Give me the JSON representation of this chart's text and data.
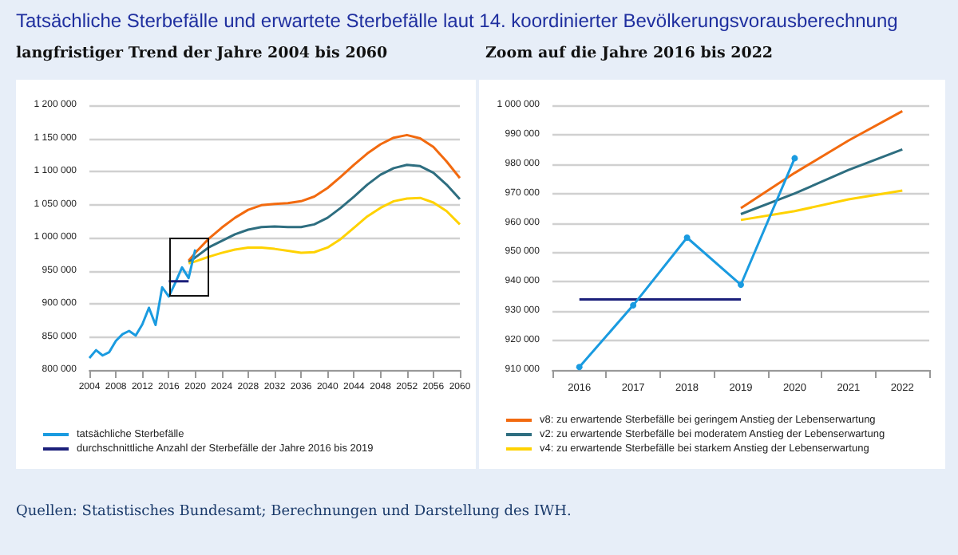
{
  "chart_data": [
    {
      "type": "line",
      "title": "Tatsächliche Sterbefälle und erwartete Sterbefälle laut 14. koordinierter Bevölkerungsvorausberechnung",
      "subtitle": "langfristiger Trend der Jahre 2004 bis 2060",
      "annotations": [
        "Quellen: Statistisches Bundesamt; Berechnungen und Darstellung des IWH."
      ],
      "xlim": [
        2004,
        2060
      ],
      "xticks": [
        2004,
        2008,
        2012,
        2016,
        2020,
        2024,
        2028,
        2032,
        2036,
        2040,
        2044,
        2048,
        2052,
        2056,
        2060
      ],
      "ylim": [
        800000,
        1200000
      ],
      "yticks": [
        {
          "value": 800000,
          "label": "800 000"
        },
        {
          "value": 850000,
          "label": "850 000"
        },
        {
          "value": 900000,
          "label": "900 000"
        },
        {
          "value": 950000,
          "label": "950 000"
        },
        {
          "value": 1000000,
          "label": "1 000 000"
        },
        {
          "value": 1050000,
          "label": "1 050 000"
        },
        {
          "value": 1100000,
          "label": "1 100 000"
        },
        {
          "value": 1150000,
          "label": "1 150 000"
        },
        {
          "value": 1200000,
          "label": "1 200 000"
        }
      ],
      "grid": "y",
      "legend": "bottom",
      "series": [
        {
          "color": "#f26a0f",
          "x": [
            2019,
            2020,
            2022,
            2024,
            2026,
            2028,
            2030,
            2032,
            2034,
            2036,
            2038,
            2040,
            2042,
            2044,
            2046,
            2048,
            2050,
            2052,
            2054,
            2056,
            2058,
            2060
          ],
          "values": [
            965000,
            977000,
            998000,
            1015000,
            1030000,
            1042000,
            1049000,
            1051000,
            1052000,
            1055000,
            1062000,
            1075000,
            1092000,
            1110000,
            1127000,
            1141000,
            1151000,
            1155000,
            1150000,
            1137000,
            1115000,
            1090000
          ]
        },
        {
          "color": "#2e6e80",
          "x": [
            2019,
            2020,
            2022,
            2024,
            2026,
            2028,
            2030,
            2032,
            2034,
            2036,
            2038,
            2040,
            2042,
            2044,
            2046,
            2048,
            2050,
            2052,
            2054,
            2056,
            2058,
            2060
          ],
          "values": [
            963000,
            970000,
            985000,
            995000,
            1005000,
            1012000,
            1016000,
            1017000,
            1016000,
            1016000,
            1020000,
            1030000,
            1045000,
            1062000,
            1080000,
            1095000,
            1105000,
            1110000,
            1108000,
            1098000,
            1080000,
            1058000
          ]
        },
        {
          "color": "#ffd200",
          "x": [
            2019,
            2020,
            2022,
            2024,
            2026,
            2028,
            2030,
            2032,
            2034,
            2036,
            2038,
            2040,
            2042,
            2044,
            2046,
            2048,
            2050,
            2052,
            2054,
            2056,
            2058,
            2060
          ],
          "values": [
            961000,
            964000,
            971000,
            977000,
            982000,
            985000,
            985000,
            983000,
            980000,
            977000,
            978000,
            985000,
            998000,
            1015000,
            1032000,
            1045000,
            1055000,
            1059000,
            1060000,
            1053000,
            1040000,
            1020000
          ]
        },
        {
          "name": "tatsächliche Sterbefälle",
          "color": "#1a9be0",
          "x": [
            2004,
            2005,
            2006,
            2007,
            2008,
            2009,
            2010,
            2011,
            2012,
            2013,
            2014,
            2015,
            2016,
            2017,
            2018,
            2019,
            2020
          ],
          "values": [
            818000,
            830000,
            822000,
            827000,
            844000,
            854000,
            859000,
            852000,
            869000,
            894000,
            868000,
            925000,
            911000,
            932000,
            955000,
            939000,
            982000
          ]
        },
        {
          "name": "durchschnittliche Anzahl der Sterbefälle der Jahre 2016 bis 2019",
          "color": "#1b1f7a",
          "x": [
            2016,
            2019
          ],
          "values": [
            934000,
            934000
          ]
        }
      ]
    },
    {
      "type": "line",
      "subtitle": "Zoom auf die Jahre 2016 bis 2022",
      "categories": [
        "2016",
        "2017",
        "2018",
        "2019",
        "2020",
        "2021",
        "2022"
      ],
      "ylim": [
        910000,
        1000000
      ],
      "yticks": [
        {
          "value": 910000,
          "label": "910 000"
        },
        {
          "value": 920000,
          "label": "920 000"
        },
        {
          "value": 930000,
          "label": "930 000"
        },
        {
          "value": 940000,
          "label": "940 000"
        },
        {
          "value": 950000,
          "label": "950 000"
        },
        {
          "value": 960000,
          "label": "960 000"
        },
        {
          "value": 970000,
          "label": "970 000"
        },
        {
          "value": 980000,
          "label": "980 000"
        },
        {
          "value": 990000,
          "label": "990 000"
        },
        {
          "value": 1000000,
          "label": "1 000 000"
        }
      ],
      "grid": "y",
      "legend": "bottom",
      "series": [
        {
          "color": "#1b1f7a",
          "values": [
            934000,
            934000,
            934000,
            934000,
            null,
            null,
            null
          ]
        },
        {
          "name": "v8: zu erwartende Sterbefälle bei geringem Anstieg der Lebenserwartung",
          "color": "#f26a0f",
          "values": [
            null,
            null,
            null,
            965000,
            977000,
            988000,
            998000
          ]
        },
        {
          "name": "v2: zu erwartende Sterbefälle bei moderatem Anstieg der Lebenserwartung",
          "color": "#2e6e80",
          "values": [
            null,
            null,
            null,
            963000,
            970000,
            978000,
            985000
          ]
        },
        {
          "name": "v4: zu erwartende Sterbefälle bei starkem Anstieg der Lebenserwartung",
          "color": "#ffd200",
          "values": [
            null,
            null,
            null,
            961000,
            964000,
            968000,
            971000
          ]
        },
        {
          "color": "#1a9be0",
          "marker": "circle",
          "values": [
            911000,
            932000,
            955000,
            939000,
            982000,
            null,
            null
          ]
        }
      ]
    }
  ]
}
